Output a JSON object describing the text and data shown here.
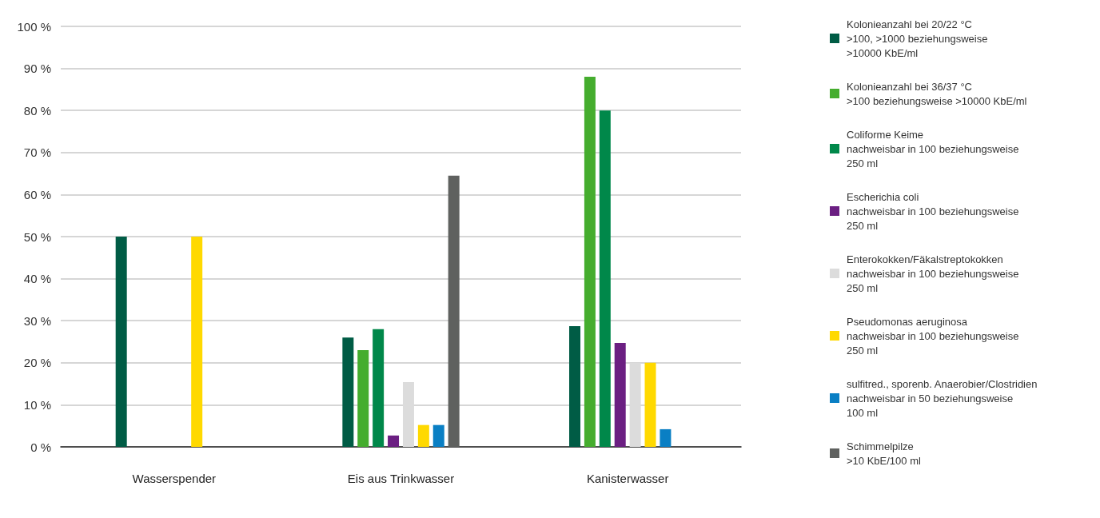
{
  "chart_data": {
    "type": "bar",
    "categories": [
      "Wasserspender",
      "Eis aus Trinkwasser",
      "Kanisterwasser"
    ],
    "series": [
      {
        "name": "Kolonieanzahl bei 20/22 °C\n>100, >1000 beziehungsweise\n>10000 KbE/ml",
        "color": "#005c45",
        "values": [
          50,
          26,
          28.7
        ]
      },
      {
        "name": "Kolonieanzahl bei 36/37 °C\n>100 beziehungsweise >10000 KbE/ml",
        "color": "#45ad2e",
        "values": [
          0,
          23,
          88
        ]
      },
      {
        "name": "Coliforme Keime\nnachweisbar in 100 beziehungsweise\n250 ml",
        "color": "#00884a",
        "values": [
          0,
          28,
          80
        ]
      },
      {
        "name": "Escherichia coli\nnachweisbar in 100 beziehungsweise\n250 ml",
        "color": "#6b1f82",
        "values": [
          0,
          2.7,
          24.7
        ]
      },
      {
        "name": "Enterokokken/Fäkalstreptokokken\nnachweisbar in 100 beziehungsweise\n250 ml",
        "color": "#dcdcdc",
        "values": [
          0,
          15.4,
          20
        ]
      },
      {
        "name": "Pseudomonas aeruginosa\nnachweisbar in 100 beziehungsweise\n250 ml",
        "color": "#ffd900",
        "values": [
          50,
          5.2,
          20
        ]
      },
      {
        "name": "sulfitred., sporenb. Anaerobier/Clostridien\nnachweisbar in 50 beziehungsweise\n100 ml",
        "color": "#0a7fc4",
        "values": [
          0,
          5.2,
          4.2
        ]
      },
      {
        "name": "Schimmelpilze\n>10 KbE/100 ml",
        "color": "#5f615f",
        "values": [
          0,
          64.5,
          0
        ]
      }
    ],
    "ylim": [
      0,
      100
    ],
    "yticks": [
      {
        "value": 0,
        "label": "0 %"
      },
      {
        "value": 10,
        "label": "10 %"
      },
      {
        "value": 20,
        "label": "20 %"
      },
      {
        "value": 30,
        "label": "30 %"
      },
      {
        "value": 40,
        "label": "40 %"
      },
      {
        "value": 50,
        "label": "50 %"
      },
      {
        "value": 60,
        "label": "60 %"
      },
      {
        "value": 70,
        "label": "70 %"
      },
      {
        "value": 80,
        "label": "80 %"
      },
      {
        "value": 90,
        "label": "90 %"
      },
      {
        "value": 100,
        "label": "100 %"
      }
    ],
    "grid": "y",
    "legend": "right"
  }
}
